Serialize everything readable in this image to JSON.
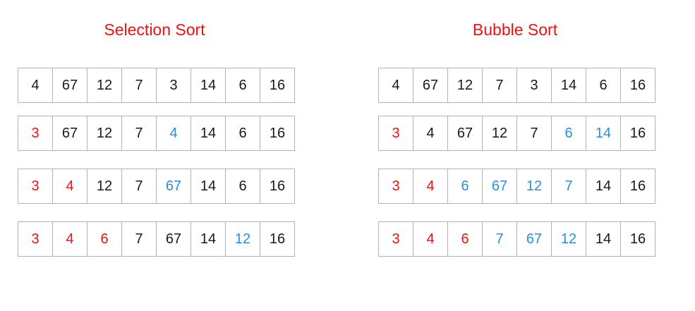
{
  "colors": {
    "title": "#ee1111",
    "sorted": "#ee1111",
    "moved": "#2b8ed8",
    "default": "#1a1a1a",
    "border": "#b3b3b3"
  },
  "panels": [
    {
      "id": "selection",
      "title": "Selection Sort",
      "rows": [
        [
          {
            "value": "4",
            "state": "default"
          },
          {
            "value": "67",
            "state": "default"
          },
          {
            "value": "12",
            "state": "default"
          },
          {
            "value": "7",
            "state": "default"
          },
          {
            "value": "3",
            "state": "default"
          },
          {
            "value": "14",
            "state": "default"
          },
          {
            "value": "6",
            "state": "default"
          },
          {
            "value": "16",
            "state": "default"
          }
        ],
        [
          {
            "value": "3",
            "state": "sorted"
          },
          {
            "value": "67",
            "state": "default"
          },
          {
            "value": "12",
            "state": "default"
          },
          {
            "value": "7",
            "state": "default"
          },
          {
            "value": "4",
            "state": "moved"
          },
          {
            "value": "14",
            "state": "default"
          },
          {
            "value": "6",
            "state": "default"
          },
          {
            "value": "16",
            "state": "default"
          }
        ],
        [
          {
            "value": "3",
            "state": "sorted"
          },
          {
            "value": "4",
            "state": "sorted"
          },
          {
            "value": "12",
            "state": "default"
          },
          {
            "value": "7",
            "state": "default"
          },
          {
            "value": "67",
            "state": "moved"
          },
          {
            "value": "14",
            "state": "default"
          },
          {
            "value": "6",
            "state": "default"
          },
          {
            "value": "16",
            "state": "default"
          }
        ],
        [
          {
            "value": "3",
            "state": "sorted"
          },
          {
            "value": "4",
            "state": "sorted"
          },
          {
            "value": "6",
            "state": "sorted"
          },
          {
            "value": "7",
            "state": "default"
          },
          {
            "value": "67",
            "state": "default"
          },
          {
            "value": "14",
            "state": "default"
          },
          {
            "value": "12",
            "state": "moved"
          },
          {
            "value": "16",
            "state": "default"
          }
        ]
      ]
    },
    {
      "id": "bubble",
      "title": "Bubble Sort",
      "rows": [
        [
          {
            "value": "4",
            "state": "default"
          },
          {
            "value": "67",
            "state": "default"
          },
          {
            "value": "12",
            "state": "default"
          },
          {
            "value": "7",
            "state": "default"
          },
          {
            "value": "3",
            "state": "default"
          },
          {
            "value": "14",
            "state": "default"
          },
          {
            "value": "6",
            "state": "default"
          },
          {
            "value": "16",
            "state": "default"
          }
        ],
        [
          {
            "value": "3",
            "state": "sorted"
          },
          {
            "value": "4",
            "state": "default"
          },
          {
            "value": "67",
            "state": "default"
          },
          {
            "value": "12",
            "state": "default"
          },
          {
            "value": "7",
            "state": "default"
          },
          {
            "value": "6",
            "state": "moved"
          },
          {
            "value": "14",
            "state": "moved"
          },
          {
            "value": "16",
            "state": "default"
          }
        ],
        [
          {
            "value": "3",
            "state": "sorted"
          },
          {
            "value": "4",
            "state": "sorted"
          },
          {
            "value": "6",
            "state": "moved"
          },
          {
            "value": "67",
            "state": "moved"
          },
          {
            "value": "12",
            "state": "moved"
          },
          {
            "value": "7",
            "state": "moved"
          },
          {
            "value": "14",
            "state": "default"
          },
          {
            "value": "16",
            "state": "default"
          }
        ],
        [
          {
            "value": "3",
            "state": "sorted"
          },
          {
            "value": "4",
            "state": "sorted"
          },
          {
            "value": "6",
            "state": "sorted"
          },
          {
            "value": "7",
            "state": "moved"
          },
          {
            "value": "67",
            "state": "moved"
          },
          {
            "value": "12",
            "state": "moved"
          },
          {
            "value": "14",
            "state": "default"
          },
          {
            "value": "16",
            "state": "default"
          }
        ]
      ]
    }
  ]
}
